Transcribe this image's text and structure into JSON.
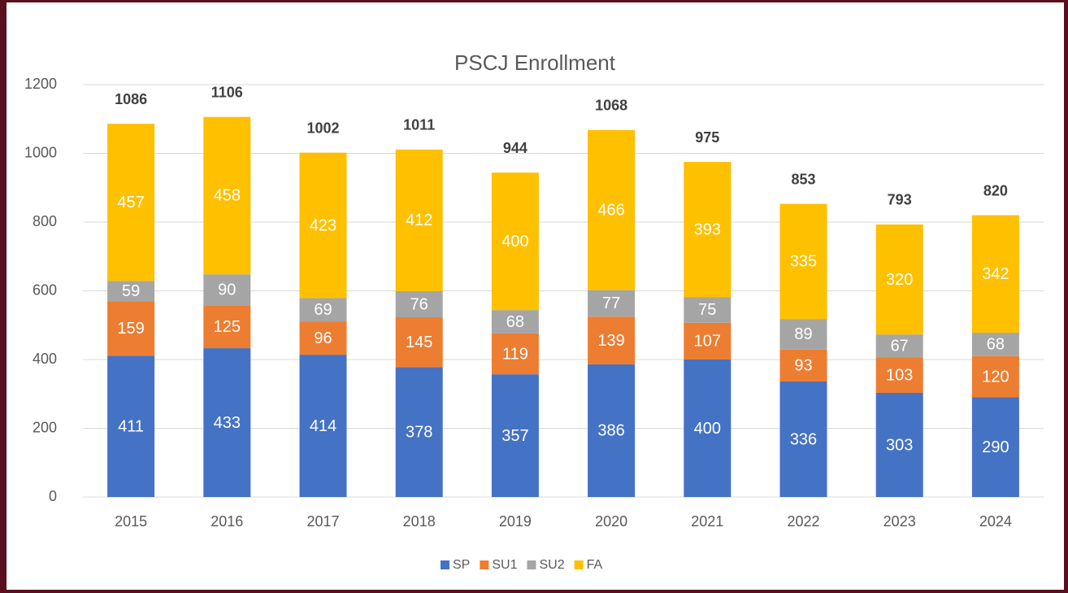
{
  "chart_data": {
    "type": "stacked_bar",
    "title": "PSCJ Enrollment",
    "categories": [
      "2015",
      "2016",
      "2017",
      "2018",
      "2019",
      "2020",
      "2021",
      "2022",
      "2023",
      "2024"
    ],
    "series": [
      {
        "name": "SP",
        "color": "#4472c4",
        "values": [
          411,
          433,
          414,
          378,
          357,
          386,
          400,
          336,
          303,
          290
        ]
      },
      {
        "name": "SU1",
        "color": "#ed7d31",
        "values": [
          159,
          125,
          96,
          145,
          119,
          139,
          107,
          93,
          103,
          120
        ]
      },
      {
        "name": "SU2",
        "color": "#a5a5a5",
        "values": [
          59,
          90,
          69,
          76,
          68,
          77,
          75,
          89,
          67,
          68
        ]
      },
      {
        "name": "FA",
        "color": "#ffc000",
        "values": [
          457,
          458,
          423,
          412,
          400,
          466,
          393,
          335,
          320,
          342
        ]
      }
    ],
    "totals": [
      1086,
      1106,
      1002,
      1011,
      944,
      1068,
      975,
      853,
      793,
      820
    ],
    "ylim": [
      0,
      1200
    ],
    "yticks": [
      0,
      200,
      400,
      600,
      800,
      1000,
      1200
    ],
    "grid": true,
    "legend": "bottom"
  }
}
